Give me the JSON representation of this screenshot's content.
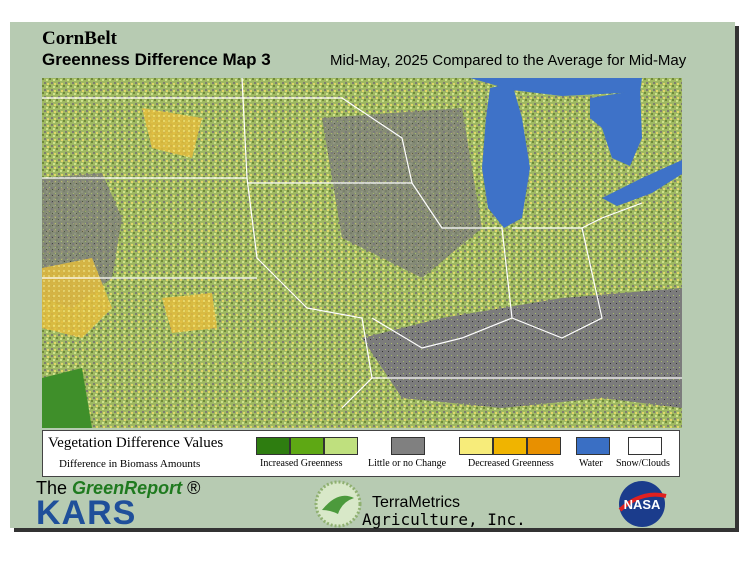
{
  "header": {
    "title": "CornBelt",
    "subtitle": "Greenness Difference Map 3",
    "description": "Mid-May, 2025 Compared to the Average for Mid-May"
  },
  "legend": {
    "title": "Vegetation Difference Values",
    "subtitle": "Difference in Biomass Amounts",
    "items": [
      "Increased Greenness",
      "Little or no Change",
      "Decreased Greenness",
      "Water",
      "Snow/Clouds"
    ]
  },
  "logos": {
    "greenreport": {
      "prefix": "The",
      "name": "GreenReport",
      "mark": "®",
      "org": "KARS"
    },
    "terrametrics": {
      "name": "TerraMetrics",
      "tagline": "Agriculture, Inc."
    },
    "nasa": "NASA"
  }
}
